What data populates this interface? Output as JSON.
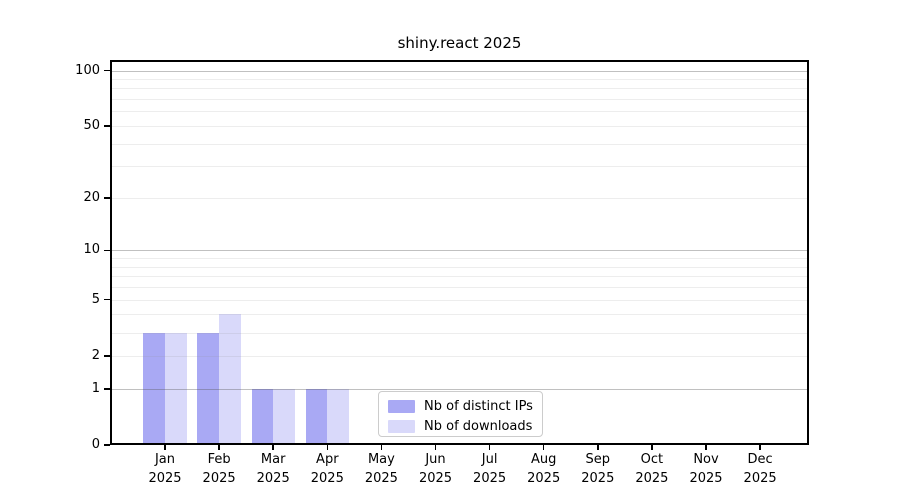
{
  "title": "shiny.react 2025",
  "legend": {
    "position": "lower center-right inside plot",
    "items": [
      {
        "label": "Nb of distinct IPs",
        "color": "#a9a9f4"
      },
      {
        "label": "Nb of downloads",
        "color": "#d9d9fa"
      }
    ]
  },
  "colors": {
    "background": "#ffffff",
    "spine": "#000000",
    "major_grid": "#b3b3b3",
    "minor_grid": "#e8e8e8",
    "text": "#000000"
  },
  "chart_data": {
    "type": "bar",
    "title": "shiny.react 2025",
    "xlabel": "",
    "ylabel": "",
    "categories": [
      "Jan 2025",
      "Feb 2025",
      "Mar 2025",
      "Apr 2025",
      "May 2025",
      "Jun 2025",
      "Jul 2025",
      "Aug 2025",
      "Sep 2025",
      "Oct 2025",
      "Nov 2025",
      "Dec 2025"
    ],
    "series": [
      {
        "name": "Nb of distinct IPs",
        "color": "#a9a9f4",
        "values": [
          3,
          3,
          1,
          1,
          0,
          0,
          0,
          0,
          0,
          0,
          0,
          0
        ]
      },
      {
        "name": "Nb of downloads",
        "color": "#d9d9fa",
        "values": [
          3,
          4,
          1,
          1,
          0,
          0,
          0,
          0,
          0,
          0,
          0,
          0
        ]
      }
    ],
    "yscale": "log10(1+x)",
    "ylim": [
      0,
      114
    ],
    "yticks": [
      0,
      1,
      2,
      5,
      10,
      20,
      50,
      100
    ],
    "major_gridlines": [
      1,
      10,
      100
    ],
    "minor_gridlines": [
      2,
      3,
      4,
      5,
      6,
      7,
      8,
      9,
      20,
      30,
      40,
      50,
      60,
      70,
      80,
      90
    ],
    "grid": true,
    "legend_position": "lower right of center"
  }
}
